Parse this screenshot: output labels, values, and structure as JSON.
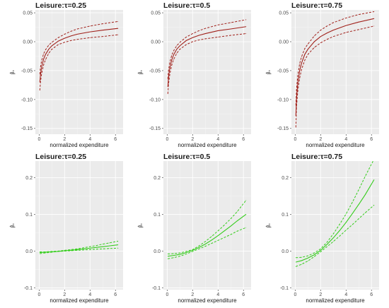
{
  "chart_data": [
    {
      "type": "line",
      "title": "Leisure:τ=0.25",
      "xlabel": "normalized expenditure",
      "ylabel": "β̂ₖ",
      "color": "#a0201a",
      "xlim": [
        -0.3,
        6.6
      ],
      "ylim": [
        -0.16,
        0.055
      ],
      "xticks": [
        0,
        2,
        4,
        6
      ],
      "yticks": [
        -0.15,
        -0.1,
        -0.05,
        0.0,
        0.05
      ],
      "ytick_labels": [
        "-0.15",
        "-0.10",
        "-0.05",
        "0.00",
        "0.05"
      ],
      "x": [
        0.05,
        0.1,
        0.2,
        0.35,
        0.5,
        0.75,
        1.0,
        1.5,
        2.0,
        2.5,
        3.0,
        4.0,
        5.0,
        6.2
      ],
      "series": [
        {
          "role": "estimate",
          "values": [
            -0.07,
            -0.057,
            -0.043,
            -0.03,
            -0.022,
            -0.013,
            -0.007,
            0.001,
            0.006,
            0.01,
            0.013,
            0.017,
            0.02,
            0.023
          ]
        },
        {
          "role": "upper",
          "values": [
            -0.056,
            -0.044,
            -0.032,
            -0.021,
            -0.014,
            -0.006,
            -0.001,
            0.007,
            0.013,
            0.018,
            0.022,
            0.027,
            0.031,
            0.035
          ]
        },
        {
          "role": "lower",
          "values": [
            -0.084,
            -0.07,
            -0.054,
            -0.04,
            -0.031,
            -0.02,
            -0.013,
            -0.005,
            -0.001,
            0.002,
            0.004,
            0.007,
            0.009,
            0.012
          ]
        }
      ]
    },
    {
      "type": "line",
      "title": "Leisure:τ=0.5",
      "xlabel": "normalized expenditure",
      "ylabel": "β̂ₖ",
      "color": "#a0201a",
      "xlim": [
        -0.3,
        6.6
      ],
      "ylim": [
        -0.16,
        0.055
      ],
      "xticks": [
        0,
        2,
        4,
        6
      ],
      "yticks": [
        -0.15,
        -0.1,
        -0.05,
        0.0,
        0.05
      ],
      "ytick_labels": [
        "-0.15",
        "-0.10",
        "-0.05",
        "0.00",
        "0.05"
      ],
      "x": [
        0.05,
        0.1,
        0.2,
        0.35,
        0.5,
        0.75,
        1.0,
        1.5,
        2.0,
        2.5,
        3.0,
        4.0,
        5.0,
        6.2
      ],
      "series": [
        {
          "role": "estimate",
          "values": [
            -0.078,
            -0.062,
            -0.046,
            -0.032,
            -0.023,
            -0.013,
            -0.007,
            0.002,
            0.007,
            0.011,
            0.014,
            0.019,
            0.022,
            0.026
          ]
        },
        {
          "role": "upper",
          "values": [
            -0.064,
            -0.05,
            -0.036,
            -0.024,
            -0.016,
            -0.007,
            -0.001,
            0.008,
            0.014,
            0.019,
            0.023,
            0.029,
            0.033,
            0.038
          ]
        },
        {
          "role": "lower",
          "values": [
            -0.09,
            -0.074,
            -0.057,
            -0.041,
            -0.031,
            -0.02,
            -0.013,
            -0.005,
            0.0,
            0.003,
            0.005,
            0.008,
            0.011,
            0.014
          ]
        }
      ]
    },
    {
      "type": "line",
      "title": "Leisure:τ=0.75",
      "xlabel": "normalized expenditure",
      "ylabel": "β̂ₖ",
      "color": "#a0201a",
      "xlim": [
        -0.3,
        6.6
      ],
      "ylim": [
        -0.16,
        0.055
      ],
      "xticks": [
        0,
        2,
        4,
        6
      ],
      "yticks": [
        -0.15,
        -0.1,
        -0.05,
        0.0,
        0.05
      ],
      "ytick_labels": [
        "-0.15",
        "-0.10",
        "-0.05",
        "0.00",
        "0.05"
      ],
      "x": [
        0.05,
        0.1,
        0.2,
        0.35,
        0.5,
        0.75,
        1.0,
        1.5,
        2.0,
        2.5,
        3.0,
        4.0,
        5.0,
        6.2
      ],
      "series": [
        {
          "role": "estimate",
          "values": [
            -0.128,
            -0.098,
            -0.072,
            -0.05,
            -0.037,
            -0.022,
            -0.013,
            0.0,
            0.009,
            0.015,
            0.02,
            0.028,
            0.034,
            0.04
          ]
        },
        {
          "role": "upper",
          "values": [
            -0.11,
            -0.083,
            -0.058,
            -0.038,
            -0.026,
            -0.012,
            -0.004,
            0.01,
            0.02,
            0.027,
            0.033,
            0.041,
            0.047,
            0.052
          ]
        },
        {
          "role": "lower",
          "values": [
            -0.148,
            -0.113,
            -0.086,
            -0.063,
            -0.048,
            -0.032,
            -0.022,
            -0.01,
            -0.002,
            0.004,
            0.009,
            0.016,
            0.021,
            0.027
          ]
        }
      ]
    },
    {
      "type": "line",
      "title": "Leisure:τ=0.25",
      "xlabel": "normalized expenditure",
      "ylabel": "β̂ₖ",
      "color": "#33cc1a",
      "xlim": [
        -0.3,
        6.6
      ],
      "ylim": [
        -0.105,
        0.245
      ],
      "xticks": [
        0,
        2,
        4,
        6
      ],
      "yticks": [
        -0.1,
        0.0,
        0.1,
        0.2
      ],
      "ytick_labels": [
        "-0.1",
        "0.0",
        "0.1",
        "0.2"
      ],
      "x": [
        0.05,
        0.5,
        1.0,
        1.5,
        2.0,
        2.5,
        3.0,
        3.5,
        4.0,
        4.5,
        5.0,
        5.5,
        6.2
      ],
      "series": [
        {
          "role": "estimate",
          "values": [
            -0.004,
            -0.003,
            -0.002,
            -0.001,
            0.001,
            0.002,
            0.004,
            0.006,
            0.008,
            0.01,
            0.012,
            0.014,
            0.017
          ]
        },
        {
          "role": "upper",
          "values": [
            -0.002,
            -0.002,
            -0.001,
            0.0,
            0.002,
            0.004,
            0.006,
            0.009,
            0.012,
            0.015,
            0.019,
            0.022,
            0.027
          ]
        },
        {
          "role": "lower",
          "values": [
            -0.007,
            -0.005,
            -0.003,
            -0.001,
            0.0,
            0.001,
            0.002,
            0.003,
            0.004,
            0.005,
            0.006,
            0.007,
            0.008
          ]
        }
      ]
    },
    {
      "type": "line",
      "title": "Leisure:τ=0.5",
      "xlabel": "normalized expenditure",
      "ylabel": "β̂ₖ",
      "color": "#33cc1a",
      "xlim": [
        -0.3,
        6.6
      ],
      "ylim": [
        -0.105,
        0.245
      ],
      "xticks": [
        0,
        2,
        4,
        6
      ],
      "yticks": [
        -0.1,
        0.0,
        0.1,
        0.2
      ],
      "ytick_labels": [
        "-0.1",
        "0.0",
        "0.1",
        "0.2"
      ],
      "x": [
        0.05,
        0.5,
        1.0,
        1.5,
        2.0,
        2.5,
        3.0,
        3.5,
        4.0,
        4.5,
        5.0,
        5.5,
        6.2
      ],
      "series": [
        {
          "role": "estimate",
          "values": [
            -0.014,
            -0.012,
            -0.009,
            -0.004,
            0.002,
            0.01,
            0.019,
            0.03,
            0.042,
            0.055,
            0.068,
            0.082,
            0.1
          ]
        },
        {
          "role": "upper",
          "values": [
            -0.008,
            -0.007,
            -0.005,
            -0.001,
            0.004,
            0.014,
            0.026,
            0.04,
            0.055,
            0.071,
            0.088,
            0.107,
            0.138
          ]
        },
        {
          "role": "lower",
          "values": [
            -0.021,
            -0.018,
            -0.014,
            -0.008,
            -0.001,
            0.006,
            0.013,
            0.021,
            0.029,
            0.037,
            0.045,
            0.054,
            0.064
          ]
        }
      ]
    },
    {
      "type": "line",
      "title": "Leisure:τ=0.75",
      "xlabel": "normalized expenditure",
      "ylabel": "β̂ₖ",
      "color": "#33cc1a",
      "xlim": [
        -0.3,
        6.6
      ],
      "ylim": [
        -0.105,
        0.245
      ],
      "xticks": [
        0,
        2,
        4,
        6
      ],
      "yticks": [
        -0.1,
        0.0,
        0.1,
        0.2
      ],
      "ytick_labels": [
        "-0.1",
        "0.0",
        "0.1",
        "0.2"
      ],
      "x": [
        0.05,
        0.5,
        1.0,
        1.5,
        2.0,
        2.5,
        3.0,
        3.5,
        4.0,
        4.5,
        5.0,
        5.5,
        6.2
      ],
      "series": [
        {
          "role": "estimate",
          "values": [
            -0.03,
            -0.026,
            -0.019,
            -0.01,
            0.002,
            0.018,
            0.036,
            0.056,
            0.078,
            0.102,
            0.127,
            0.153,
            0.194
          ]
        },
        {
          "role": "upper",
          "values": [
            -0.018,
            -0.017,
            -0.013,
            -0.005,
            0.006,
            0.024,
            0.047,
            0.073,
            0.101,
            0.133,
            0.167,
            0.203,
            0.25
          ]
        },
        {
          "role": "lower",
          "values": [
            -0.042,
            -0.036,
            -0.027,
            -0.015,
            -0.002,
            0.012,
            0.026,
            0.041,
            0.057,
            0.072,
            0.088,
            0.104,
            0.125
          ]
        }
      ]
    }
  ]
}
